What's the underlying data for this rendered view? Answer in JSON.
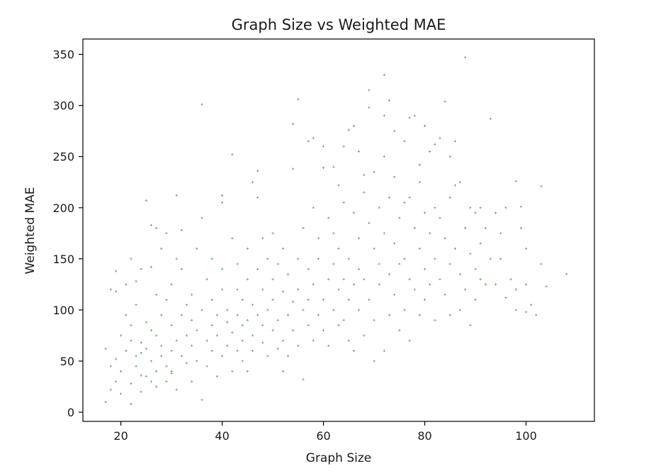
{
  "chart_data": {
    "type": "scatter",
    "title": "Graph Size vs Weighted MAE",
    "xlabel": "Graph Size",
    "ylabel": "Weighted MAE",
    "xlim": [
      12.5,
      113.5
    ],
    "ylim": [
      -9,
      365
    ],
    "xticks": [
      20,
      40,
      60,
      80,
      100
    ],
    "yticks": [
      0,
      50,
      100,
      150,
      200,
      250,
      300,
      350
    ],
    "grid": false,
    "legend": null,
    "marker": "+",
    "color": "#2e8b2e",
    "series": [
      {
        "points": [
          [
            17,
            10
          ],
          [
            17,
            62
          ],
          [
            18,
            22
          ],
          [
            18,
            45
          ],
          [
            18,
            120
          ],
          [
            19,
            30
          ],
          [
            19,
            52
          ],
          [
            19,
            118
          ],
          [
            19,
            138
          ],
          [
            20,
            40
          ],
          [
            20,
            75
          ],
          [
            20,
            18
          ],
          [
            21,
            95
          ],
          [
            21,
            60
          ],
          [
            21,
            125
          ],
          [
            22,
            8
          ],
          [
            22,
            28
          ],
          [
            22,
            70
          ],
          [
            22,
            85
          ],
          [
            22,
            150
          ],
          [
            23,
            45
          ],
          [
            23,
            55
          ],
          [
            23,
            105
          ],
          [
            23,
            128
          ],
          [
            24,
            36
          ],
          [
            24,
            58
          ],
          [
            24,
            68
          ],
          [
            24,
            140
          ],
          [
            24,
            20
          ],
          [
            25,
            35
          ],
          [
            25,
            62
          ],
          [
            25,
            88
          ],
          [
            25,
            207
          ],
          [
            26,
            50
          ],
          [
            26,
            30
          ],
          [
            26,
            80
          ],
          [
            26,
            142
          ],
          [
            26,
            183
          ],
          [
            27,
            40
          ],
          [
            27,
            75
          ],
          [
            27,
            115
          ],
          [
            27,
            180
          ],
          [
            27,
            25
          ],
          [
            28,
            55
          ],
          [
            28,
            95
          ],
          [
            28,
            65
          ],
          [
            28,
            160
          ],
          [
            29,
            30
          ],
          [
            29,
            45
          ],
          [
            29,
            110
          ],
          [
            29,
            175
          ],
          [
            30,
            40
          ],
          [
            30,
            60
          ],
          [
            30,
            85
          ],
          [
            30,
            125
          ],
          [
            30,
            38
          ],
          [
            31,
            212
          ],
          [
            31,
            150
          ],
          [
            31,
            70
          ],
          [
            31,
            22
          ],
          [
            32,
            55
          ],
          [
            32,
            95
          ],
          [
            32,
            140
          ],
          [
            32,
            178
          ],
          [
            33,
            48
          ],
          [
            33,
            75
          ],
          [
            33,
            105
          ],
          [
            34,
            30
          ],
          [
            34,
            65
          ],
          [
            34,
            90
          ],
          [
            34,
            115
          ],
          [
            35,
            160
          ],
          [
            35,
            50
          ],
          [
            35,
            80
          ],
          [
            36,
            301
          ],
          [
            36,
            12
          ],
          [
            36,
            190
          ],
          [
            36,
            100
          ],
          [
            37,
            45
          ],
          [
            37,
            70
          ],
          [
            37,
            130
          ],
          [
            38,
            60
          ],
          [
            38,
            85
          ],
          [
            38,
            110
          ],
          [
            38,
            150
          ],
          [
            39,
            35
          ],
          [
            39,
            75
          ],
          [
            39,
            95
          ],
          [
            40,
            205
          ],
          [
            40,
            212
          ],
          [
            40,
            120
          ],
          [
            40,
            55
          ],
          [
            40,
            140
          ],
          [
            41,
            65
          ],
          [
            41,
            88
          ],
          [
            41,
            100
          ],
          [
            42,
            252
          ],
          [
            42,
            40
          ],
          [
            42,
            78
          ],
          [
            42,
            170
          ],
          [
            43,
            60
          ],
          [
            43,
            95
          ],
          [
            43,
            120
          ],
          [
            43,
            145
          ],
          [
            44,
            50
          ],
          [
            44,
            85
          ],
          [
            44,
            110
          ],
          [
            44,
            70
          ],
          [
            45,
            90
          ],
          [
            45,
            130
          ],
          [
            45,
            160
          ],
          [
            45,
            40
          ],
          [
            46,
            225
          ],
          [
            46,
            75
          ],
          [
            46,
            105
          ],
          [
            46,
            60
          ],
          [
            47,
            236
          ],
          [
            47,
            210
          ],
          [
            47,
            95
          ],
          [
            47,
            140
          ],
          [
            48,
            68
          ],
          [
            48,
            85
          ],
          [
            48,
            120
          ],
          [
            48,
            170
          ],
          [
            49,
            55
          ],
          [
            49,
            100
          ],
          [
            49,
            150
          ],
          [
            50,
            80
          ],
          [
            50,
            110
          ],
          [
            50,
            130
          ],
          [
            50,
            175
          ],
          [
            51,
            62
          ],
          [
            51,
            90
          ],
          [
            51,
            145
          ],
          [
            52,
            40
          ],
          [
            52,
            118
          ],
          [
            52,
            160
          ],
          [
            52,
            70
          ],
          [
            53,
            95
          ],
          [
            53,
            135
          ],
          [
            53,
            55
          ],
          [
            54,
            282
          ],
          [
            54,
            238
          ],
          [
            54,
            108
          ],
          [
            54,
            80
          ],
          [
            55,
            306
          ],
          [
            55,
            150
          ],
          [
            55,
            120
          ],
          [
            55,
            65
          ],
          [
            56,
            100
          ],
          [
            56,
            180
          ],
          [
            56,
            32
          ],
          [
            57,
            265
          ],
          [
            57,
            140
          ],
          [
            57,
            85
          ],
          [
            57,
            110
          ],
          [
            58,
            268
          ],
          [
            58,
            200
          ],
          [
            58,
            125
          ],
          [
            58,
            70
          ],
          [
            59,
            170
          ],
          [
            59,
            95
          ],
          [
            59,
            150
          ],
          [
            60,
            239
          ],
          [
            60,
            260
          ],
          [
            60,
            110
          ],
          [
            60,
            80
          ],
          [
            61,
            130
          ],
          [
            61,
            190
          ],
          [
            61,
            65
          ],
          [
            62,
            240
          ],
          [
            62,
            175
          ],
          [
            62,
            100
          ],
          [
            62,
            145
          ],
          [
            63,
            222
          ],
          [
            63,
            120
          ],
          [
            63,
            85
          ],
          [
            63,
            160
          ],
          [
            64,
            260
          ],
          [
            64,
            205
          ],
          [
            64,
            130
          ],
          [
            64,
            90
          ],
          [
            65,
            276
          ],
          [
            65,
            150
          ],
          [
            65,
            110
          ],
          [
            65,
            70
          ],
          [
            66,
            280
          ],
          [
            66,
            195
          ],
          [
            66,
            125
          ],
          [
            66,
            60
          ],
          [
            67,
            255
          ],
          [
            67,
            170
          ],
          [
            67,
            100
          ],
          [
            67,
            140
          ],
          [
            68,
            232
          ],
          [
            68,
            215
          ],
          [
            68,
            130
          ],
          [
            68,
            75
          ],
          [
            69,
            315
          ],
          [
            69,
            298
          ],
          [
            69,
            185
          ],
          [
            69,
            110
          ],
          [
            70,
            235
          ],
          [
            70,
            160
          ],
          [
            70,
            90
          ],
          [
            70,
            50
          ],
          [
            71,
            200
          ],
          [
            71,
            125
          ],
          [
            71,
            145
          ],
          [
            72,
            330
          ],
          [
            72,
            290
          ],
          [
            72,
            250
          ],
          [
            72,
            175
          ],
          [
            72,
            60
          ],
          [
            73,
            305
          ],
          [
            73,
            210
          ],
          [
            73,
            135
          ],
          [
            73,
            95
          ],
          [
            74,
            275
          ],
          [
            74,
            230
          ],
          [
            74,
            165
          ],
          [
            74,
            115
          ],
          [
            75,
            190
          ],
          [
            75,
            145
          ],
          [
            75,
            80
          ],
          [
            76,
            265
          ],
          [
            76,
            205
          ],
          [
            76,
            150
          ],
          [
            76,
            100
          ],
          [
            77,
            288
          ],
          [
            77,
            210
          ],
          [
            77,
            130
          ],
          [
            77,
            70
          ],
          [
            78,
            290
          ],
          [
            78,
            180
          ],
          [
            78,
            120
          ],
          [
            79,
            242
          ],
          [
            79,
            225
          ],
          [
            79,
            160
          ],
          [
            79,
            95
          ],
          [
            80,
            280
          ],
          [
            80,
            195
          ],
          [
            80,
            140
          ],
          [
            80,
            110
          ],
          [
            81,
            255
          ],
          [
            81,
            175
          ],
          [
            81,
            125
          ],
          [
            82,
            262
          ],
          [
            82,
            200
          ],
          [
            82,
            150
          ],
          [
            82,
            90
          ],
          [
            83,
            268
          ],
          [
            83,
            190
          ],
          [
            83,
            130
          ],
          [
            84,
            304
          ],
          [
            84,
            170
          ],
          [
            84,
            115
          ],
          [
            85,
            250
          ],
          [
            85,
            210
          ],
          [
            85,
            145
          ],
          [
            85,
            95
          ],
          [
            86,
            265
          ],
          [
            86,
            222
          ],
          [
            86,
            160
          ],
          [
            87,
            225
          ],
          [
            87,
            135
          ],
          [
            87,
            100
          ],
          [
            88,
            347
          ],
          [
            88,
            180
          ],
          [
            88,
            120
          ],
          [
            89,
            200
          ],
          [
            89,
            155
          ],
          [
            89,
            85
          ],
          [
            90,
            195
          ],
          [
            90,
            140
          ],
          [
            90,
            110
          ],
          [
            91,
            200
          ],
          [
            91,
            165
          ],
          [
            91,
            130
          ],
          [
            92,
            180
          ],
          [
            92,
            125
          ],
          [
            93,
            287
          ],
          [
            93,
            150
          ],
          [
            94,
            195
          ],
          [
            94,
            125
          ],
          [
            95,
            175
          ],
          [
            95,
            150
          ],
          [
            96,
            200
          ],
          [
            96,
            112
          ],
          [
            97,
            130
          ],
          [
            98,
            226
          ],
          [
            98,
            120
          ],
          [
            98,
            100
          ],
          [
            99,
            201
          ],
          [
            99,
            180
          ],
          [
            100,
            160
          ],
          [
            100,
            125
          ],
          [
            100,
            98
          ],
          [
            101,
            105
          ],
          [
            102,
            95
          ],
          [
            103,
            221
          ],
          [
            103,
            145
          ],
          [
            104,
            123
          ],
          [
            108,
            135
          ]
        ]
      }
    ]
  }
}
